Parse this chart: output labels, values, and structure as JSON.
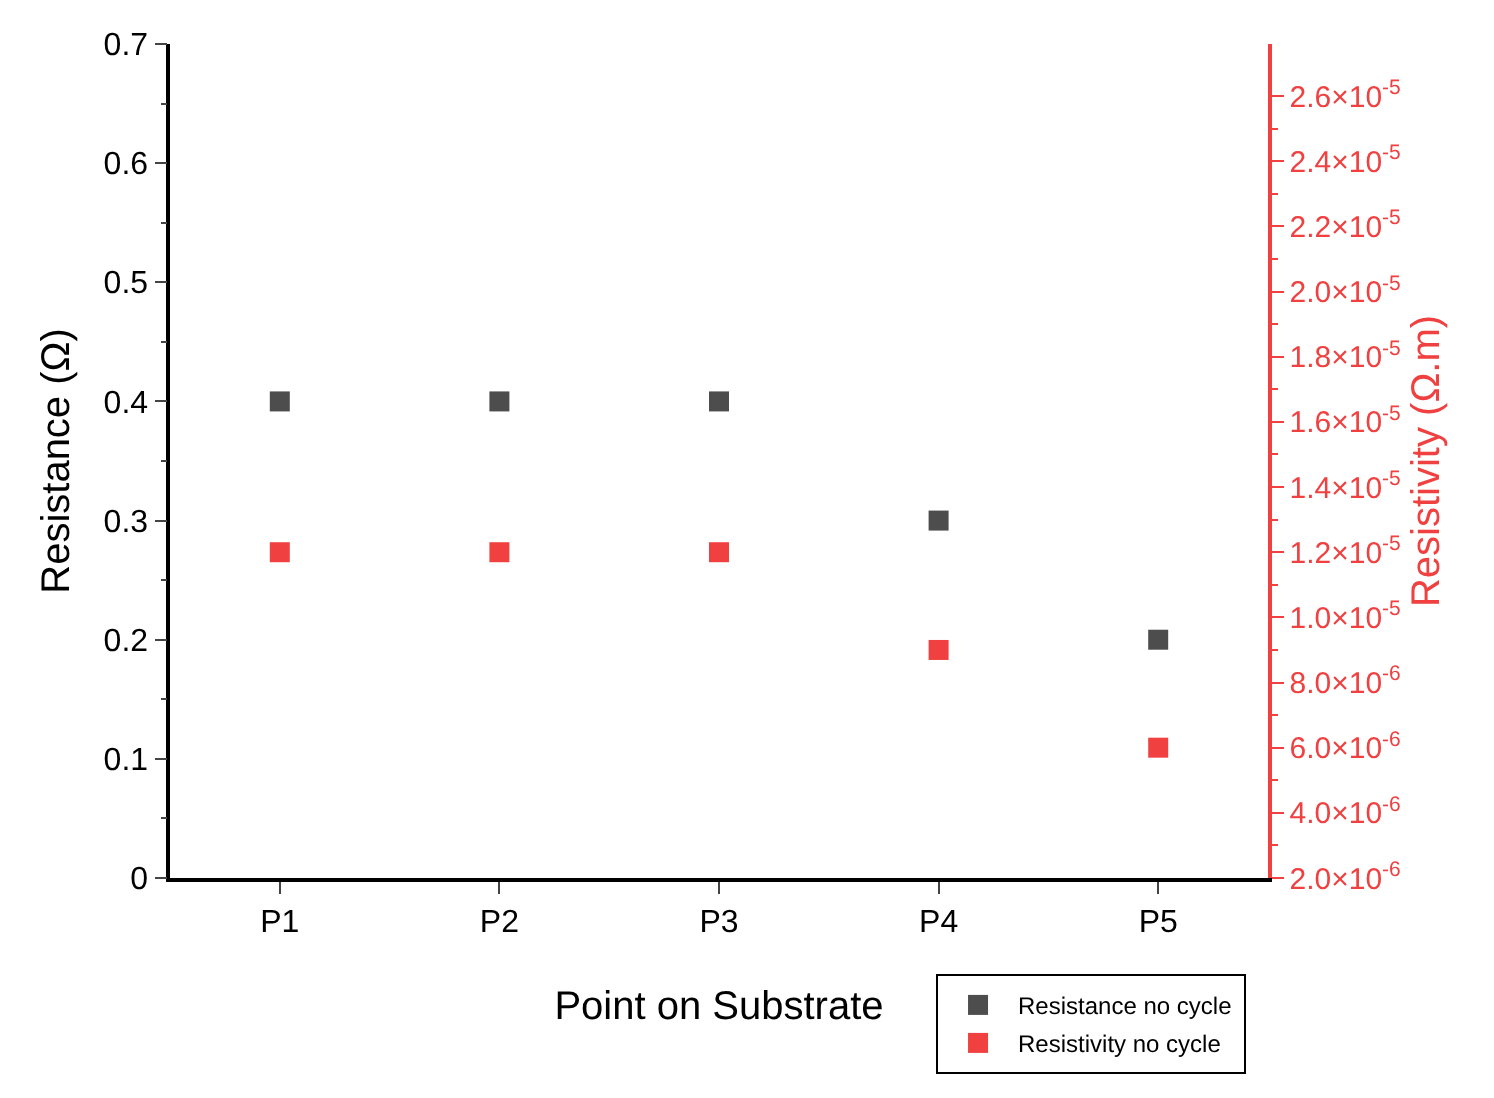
{
  "chart_data": {
    "type": "scatter",
    "xlabel": "Point on Substrate",
    "ylabel": "Resistance (Ω)",
    "y2label": "Resistivity (Ω.m)",
    "categories": [
      "P1",
      "P2",
      "P3",
      "P4",
      "P5"
    ],
    "series": [
      {
        "name": "Resistance no cycle",
        "color": "#4d4d4d",
        "values": [
          0.4,
          0.4,
          0.4,
          0.3,
          0.2
        ]
      },
      {
        "name": "Resistivity no cycle",
        "color": "#f04040",
        "axis": "y2",
        "values": [
          1.2e-05,
          1.2e-05,
          1.2e-05,
          9e-06,
          6e-06
        ]
      }
    ],
    "ylim": [
      0,
      0.7
    ],
    "yticks": [
      0,
      0.1,
      0.2,
      0.3,
      0.4,
      0.5,
      0.6,
      0.7
    ],
    "y2lim": [
      2e-06,
      2.76e-05
    ],
    "y2ticks": [
      {
        "value": 2e-06,
        "label": "2.0×10$^{-6}$"
      },
      {
        "value": 4e-06,
        "label": "4.0×10$^{-6}$"
      },
      {
        "value": 6e-06,
        "label": "6.0×10$^{-6}$"
      },
      {
        "value": 8e-06,
        "label": "8.0×10$^{-6}$"
      },
      {
        "value": 1e-05,
        "label": "1.0×10$^{-5}$"
      },
      {
        "value": 1.2e-05,
        "label": "1.2×10$^{-5}$"
      },
      {
        "value": 1.4e-05,
        "label": "1.4×10$^{-5}$"
      },
      {
        "value": 1.6e-05,
        "label": "1.6×10$^{-5}$"
      },
      {
        "value": 1.8e-05,
        "label": "1.8×10$^{-5}$"
      },
      {
        "value": 2e-05,
        "label": "2.0×10$^{-5}$"
      },
      {
        "value": 2.2e-05,
        "label": "2.2×10$^{-5}$"
      },
      {
        "value": 2.4e-05,
        "label": "2.4×10$^{-5}$"
      },
      {
        "value": 2.6e-05,
        "label": "2.6×10$^{-5}$"
      }
    ],
    "marker": "square",
    "grid": false,
    "legend": "bottom right"
  }
}
